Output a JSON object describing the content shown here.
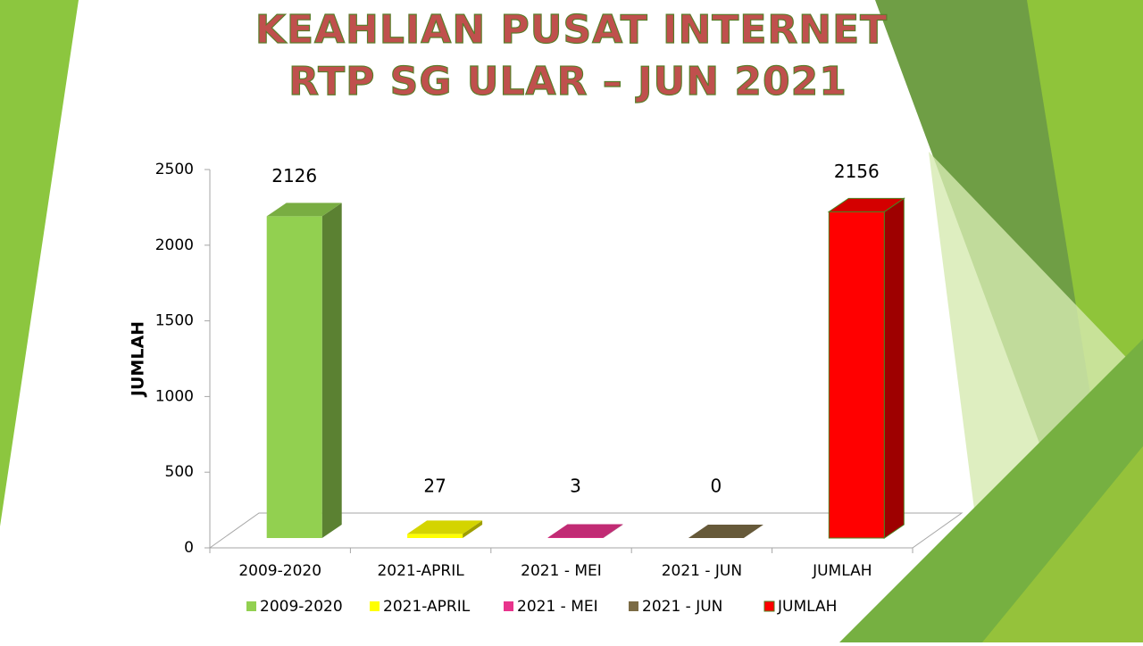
{
  "chart_data": {
    "type": "bar3d",
    "title": [
      "KEAHLIAN PUSAT INTERNET",
      "RTP SG ULAR – JUN 2021"
    ],
    "y_label": "JUMLAH",
    "categories": [
      "2009-2020",
      "2021-APRIL",
      "2021 - MEI",
      "2021 - JUN",
      "JUMLAH"
    ],
    "values": [
      2126,
      27,
      3,
      0,
      2156
    ],
    "colors": [
      "#92d050",
      "#ffff00",
      "#e8348c",
      "#7b6b45",
      "#ff0000"
    ],
    "ylim": [
      0,
      2500
    ],
    "yticks": [
      0,
      500,
      1000,
      1500,
      2000,
      2500
    ],
    "legend": "bottom"
  }
}
